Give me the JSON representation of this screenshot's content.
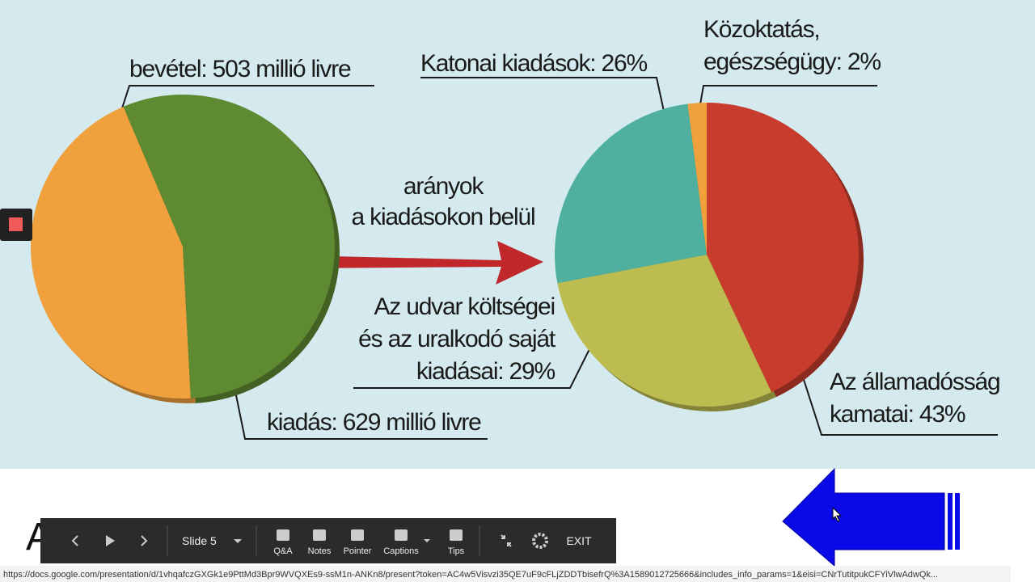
{
  "slide": {
    "left_pie": {
      "type": "pie",
      "slices": [
        {
          "label": "bevétel: 503 millió livre",
          "value": 503,
          "color": "#f0a03c"
        },
        {
          "label": "kiadás: 629 millió livre",
          "value": 629,
          "color": "#5e8a32"
        }
      ]
    },
    "arrow_label": [
      "arányok",
      "a kiadásokon belül"
    ],
    "right_pie": {
      "type": "pie",
      "slices": [
        {
          "label": [
            "Az államadósság",
            "kamatai: 43%"
          ],
          "value": 43,
          "color": "#c83c2e"
        },
        {
          "label": [
            "Az udvar költségei",
            "és az uralkodó saját",
            "kiadásai: 29%"
          ],
          "value": 29,
          "color": "#bcbc50"
        },
        {
          "label": [
            "Katonai kiadások: 26%"
          ],
          "value": 26,
          "color": "#4fb0a0"
        },
        {
          "label": [
            "Közoktatás,",
            "egészségügy: 2%"
          ],
          "value": 2,
          "color": "#f0a03c"
        }
      ]
    },
    "below_text": "A"
  },
  "toolbar": {
    "slide": "Slide 5",
    "buttons": [
      "Q&A",
      "Notes",
      "Pointer",
      "Captions",
      "Tips"
    ],
    "exit": "EXIT"
  },
  "url": "https://docs.google.com/presentation/d/1vhqafczGXGk1e9PttMd3Bpr9WVQXEs9-ssM1n-ANKn8/present?token=AC4w5Visvzi35QE7uF9cFLjZDDTbisefrQ%3A1589012725666&includes_info_params=1&eisi=CNrTutitpukCFYiVlwAdwQk..."
}
